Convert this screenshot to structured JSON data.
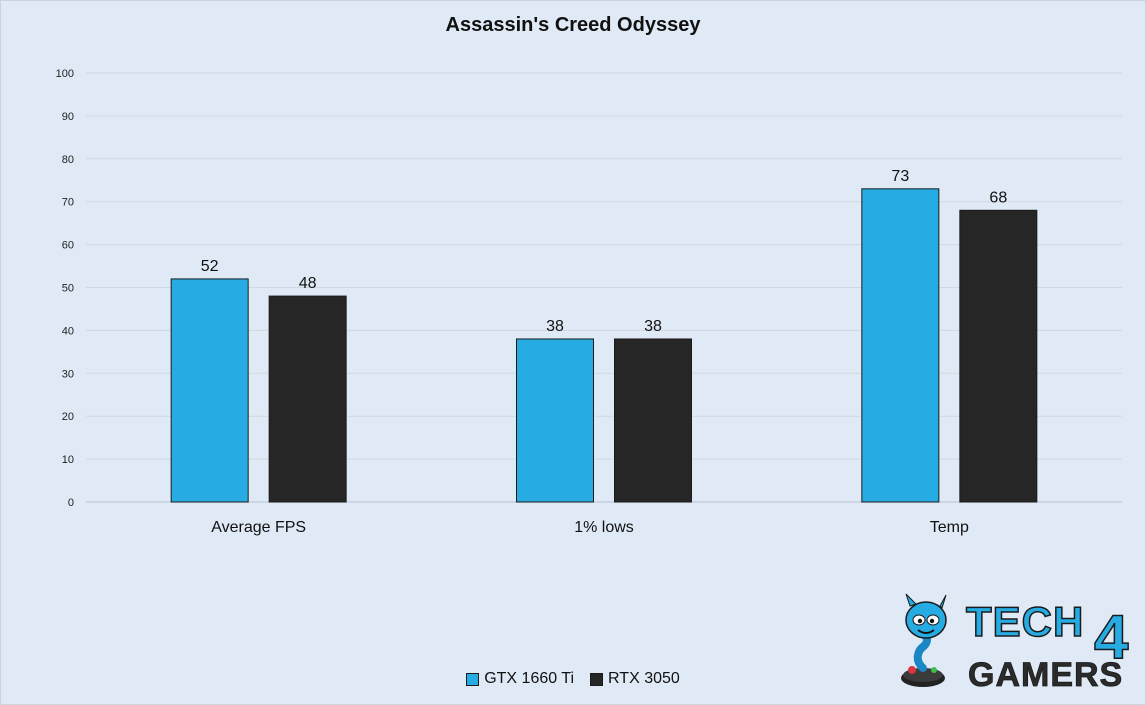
{
  "chart_data": {
    "type": "bar",
    "title": "Assassin's Creed Odyssey",
    "categories": [
      "Average FPS",
      "1% lows",
      "Temp"
    ],
    "series": [
      {
        "name": "GTX 1660 Ti",
        "values": [
          52,
          38,
          73
        ],
        "color": "#26abe3"
      },
      {
        "name": "RTX 3050",
        "values": [
          48,
          38,
          68
        ],
        "color": "#262626"
      }
    ],
    "ylim": [
      0,
      100
    ],
    "yticks": [
      0,
      10,
      20,
      30,
      40,
      50,
      60,
      70,
      80,
      90,
      100
    ],
    "grid": true,
    "legend_position": "bottom-center",
    "data_labels": true
  },
  "logo": {
    "text_line1": "TECH",
    "text_line2": "GAMERS",
    "digit": "4",
    "color": "#26abe3"
  },
  "background_color": "#dfeaf6"
}
